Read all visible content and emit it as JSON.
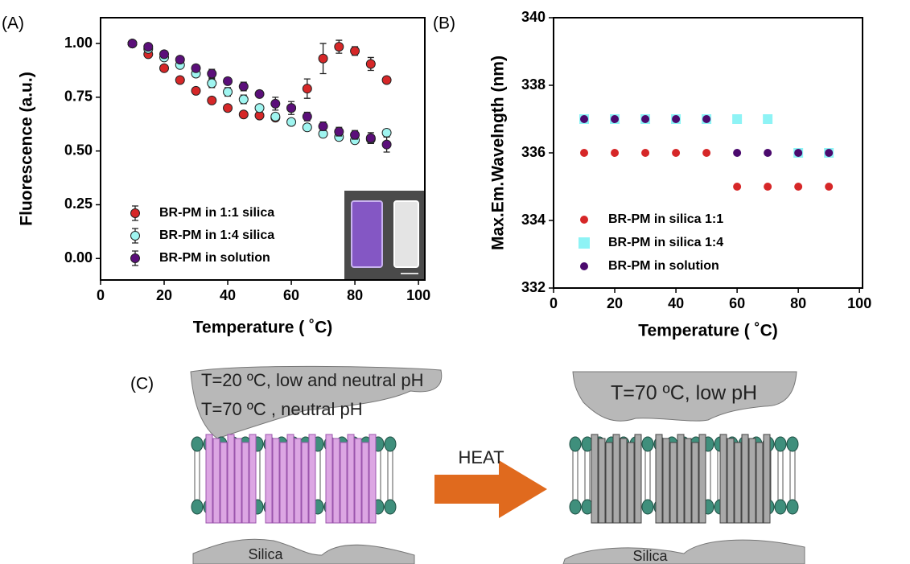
{
  "panel_labels": [
    "(A)",
    "(B)",
    "(C)"
  ],
  "chart_data": [
    {
      "type": "scatter",
      "xlabel": "Temperature ( ˚C)",
      "ylabel": "Fluorescence (a.u.)",
      "xlim": [
        0,
        102
      ],
      "xticks": [
        0,
        20,
        40,
        60,
        80,
        100
      ],
      "ylim": [
        -0.1,
        1.12
      ],
      "yticks": [
        {
          "value": 0,
          "label": "0.00"
        },
        0.25,
        {
          "value": 0.5,
          "label": "0.50"
        },
        0.75,
        {
          "value": 1,
          "label": "1.00"
        }
      ],
      "legend": "lower left",
      "x": [
        10,
        15,
        20,
        25,
        30,
        35,
        40,
        45,
        50,
        55,
        60,
        65,
        70,
        75,
        80,
        85,
        90
      ],
      "series": [
        {
          "name": "BR-PM in 1:1 silica",
          "color": "#d62728",
          "marker": "circle",
          "values": [
            1.0,
            0.95,
            0.885,
            0.83,
            0.78,
            0.735,
            0.7,
            0.67,
            0.665,
            0.655,
            0.7,
            0.79,
            0.93,
            0.985,
            0.965,
            0.905,
            0.83
          ],
          "errors": [
            0.01,
            0.01,
            0.01,
            0.01,
            0.01,
            0.01,
            0.01,
            0.01,
            0.01,
            0.01,
            0.015,
            0.045,
            0.07,
            0.03,
            0.02,
            0.03,
            0.015
          ]
        },
        {
          "name": "BR-PM in 1:4 silica",
          "color": "#9ff5f0",
          "marker": "circle",
          "values": [
            1.0,
            0.975,
            0.935,
            0.9,
            0.86,
            0.815,
            0.775,
            0.74,
            0.7,
            0.66,
            0.635,
            0.61,
            0.58,
            0.565,
            0.55,
            0.555,
            0.585
          ],
          "errors": [
            0.01,
            0.01,
            0.01,
            0.01,
            0.015,
            0.02,
            0.02,
            0.02,
            0.015,
            0.015,
            0.015,
            0.015,
            0.015,
            0.015,
            0.015,
            0.02,
            0.015
          ]
        },
        {
          "name": "BR-PM in solution",
          "color": "#5b0f7a",
          "marker": "circle",
          "values": [
            1.0,
            0.985,
            0.95,
            0.925,
            0.885,
            0.86,
            0.825,
            0.8,
            0.765,
            0.72,
            0.7,
            0.66,
            0.615,
            0.59,
            0.575,
            0.56,
            0.53
          ],
          "errors": [
            0.01,
            0.01,
            0.015,
            0.015,
            0.015,
            0.02,
            0.015,
            0.02,
            0.015,
            0.03,
            0.03,
            0.02,
            0.02,
            0.02,
            0.02,
            0.025,
            0.035
          ]
        }
      ]
    },
    {
      "type": "scatter",
      "xlabel": "Temperature ( ˚C)",
      "ylabel": "Max.Em.Wavelngth (nm)",
      "xlim": [
        0,
        101
      ],
      "xticks": [
        0,
        20,
        40,
        60,
        80,
        100
      ],
      "ylim": [
        332,
        340
      ],
      "yticks": [
        332,
        334,
        336,
        338,
        340
      ],
      "legend": "lower left",
      "x": [
        10,
        20,
        30,
        40,
        50,
        60,
        70,
        80,
        90
      ],
      "series": [
        {
          "name": "BR-PM in silica 1:1",
          "color": "#d62728",
          "marker": "circle",
          "values": [
            336,
            336,
            336,
            336,
            336,
            335,
            335,
            335,
            335
          ]
        },
        {
          "name": "BR-PM in silica 1:4",
          "color": "#8ef3f5",
          "marker": "square",
          "values": [
            337,
            337,
            337,
            337,
            337,
            337,
            337,
            336,
            336
          ]
        },
        {
          "name": "BR-PM in solution",
          "color": "#4b0a6e",
          "marker": "circle",
          "values": [
            337,
            337,
            337,
            337,
            337,
            336,
            336,
            336,
            336
          ]
        }
      ]
    }
  ],
  "diagram": {
    "left_labels": [
      "T=20 ºC, low and neutral pH",
      "T=70 ºC , neutral pH"
    ],
    "arrow_label": "HEAT",
    "right_label": "T=70 ºC, low pH",
    "silica_labels": [
      "Silica",
      "Silica"
    ]
  }
}
